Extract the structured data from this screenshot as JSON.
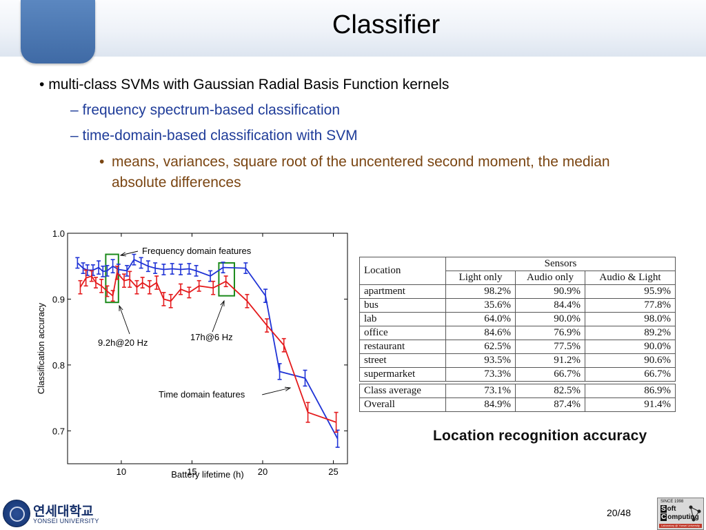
{
  "slide": {
    "title": "Classifier",
    "page": "20/48"
  },
  "bullets": {
    "l1_mark": "•",
    "l1": "multi-class SVMs with Gaussian Radial Basis Function kernels",
    "l2a": "– frequency spectrum-based classification",
    "l2b": "– time-domain-based classification with SVM",
    "l3_mark": "•",
    "l3": "means, variances, square root of the uncentered second moment, the median absolute differences"
  },
  "chart_data": {
    "type": "line",
    "xlabel": "Battery lifetime (h)",
    "ylabel": "Classification accuracy",
    "xlim": [
      6.2,
      26
    ],
    "ylim": [
      0.65,
      1.0
    ],
    "xticks": [
      10,
      15,
      20,
      25
    ],
    "xtick_labels": [
      "10",
      "15",
      "20",
      "25"
    ],
    "yticks": [
      0.7,
      0.8,
      0.9,
      1.0
    ],
    "ytick_labels": [
      "0.7",
      "0.8",
      "0.9",
      "1.0"
    ],
    "series": [
      {
        "name": "Frequency domain features",
        "color": "#1f33d6",
        "x": [
          6.9,
          7.3,
          7.6,
          8.0,
          8.4,
          8.7,
          9.0,
          9.4,
          9.8,
          10.4,
          10.9,
          11.4,
          11.9,
          12.4,
          13.0,
          13.6,
          14.2,
          14.8,
          15.3,
          16.3,
          17.2,
          18.8,
          20.2,
          21.2,
          23.0,
          25.3
        ],
        "y": [
          0.955,
          0.947,
          0.944,
          0.944,
          0.948,
          0.942,
          0.943,
          0.95,
          0.945,
          0.943,
          0.96,
          0.955,
          0.95,
          0.947,
          0.945,
          0.946,
          0.945,
          0.946,
          0.943,
          0.935,
          0.948,
          0.947,
          0.905,
          0.79,
          0.78,
          0.688
        ],
        "err": [
          0.008,
          0.008,
          0.008,
          0.008,
          0.01,
          0.008,
          0.008,
          0.01,
          0.008,
          0.008,
          0.008,
          0.008,
          0.008,
          0.008,
          0.008,
          0.008,
          0.008,
          0.008,
          0.008,
          0.008,
          0.008,
          0.008,
          0.01,
          0.012,
          0.012,
          0.013
        ]
      },
      {
        "name": "Time domain features",
        "color": "#e41a1c",
        "x": [
          7.1,
          7.5,
          7.9,
          8.2,
          8.6,
          9.0,
          9.4,
          9.7,
          10.2,
          10.6,
          11.1,
          11.5,
          12.0,
          12.5,
          13.0,
          13.5,
          14.2,
          14.8,
          15.5,
          16.5,
          17.4,
          18.9,
          20.3,
          21.5,
          23.2,
          25.2
        ],
        "y": [
          0.918,
          0.932,
          0.935,
          0.925,
          0.92,
          0.912,
          0.905,
          0.94,
          0.928,
          0.93,
          0.918,
          0.925,
          0.918,
          0.925,
          0.9,
          0.897,
          0.915,
          0.91,
          0.92,
          0.917,
          0.927,
          0.897,
          0.86,
          0.83,
          0.728,
          0.713
        ],
        "err": [
          0.01,
          0.012,
          0.008,
          0.008,
          0.01,
          0.008,
          0.008,
          0.01,
          0.01,
          0.012,
          0.01,
          0.008,
          0.01,
          0.01,
          0.01,
          0.01,
          0.008,
          0.008,
          0.008,
          0.01,
          0.008,
          0.01,
          0.01,
          0.01,
          0.015,
          0.015
        ]
      }
    ],
    "annotations": {
      "freq_label": "Frequency domain features",
      "time_label": "Time domain features",
      "box1_label": "9.2h@20 Hz",
      "box2_label": "17h@6 Hz"
    },
    "highlight_boxes": [
      {
        "x_range": [
          8.9,
          9.8
        ],
        "y_range": [
          0.895,
          0.968
        ]
      },
      {
        "x_range": [
          16.9,
          18.0
        ],
        "y_range": [
          0.905,
          0.955
        ]
      }
    ],
    "box_color": "#1a8a1a"
  },
  "table": {
    "col_location": "Location",
    "col_sensors": "Sensors",
    "sub_headers": [
      "Light only",
      "Audio only",
      "Audio & Light"
    ],
    "rows": [
      [
        "apartment",
        "98.2%",
        "90.9%",
        "95.9%"
      ],
      [
        "bus",
        "35.6%",
        "84.4%",
        "77.8%"
      ],
      [
        "lab",
        "64.0%",
        "90.0%",
        "98.0%"
      ],
      [
        "office",
        "84.6%",
        "76.9%",
        "89.2%"
      ],
      [
        "restaurant",
        "62.5%",
        "77.5%",
        "90.0%"
      ],
      [
        "street",
        "93.5%",
        "91.2%",
        "90.6%"
      ],
      [
        "supermarket",
        "73.3%",
        "66.7%",
        "66.7%"
      ]
    ],
    "summary_rows": [
      [
        "Class average",
        "73.1%",
        "82.5%",
        "86.9%"
      ],
      [
        "Overall",
        "84.9%",
        "87.4%",
        "91.4%"
      ]
    ],
    "caption": "Location recognition accuracy"
  },
  "footer": {
    "univ_kor": "연세대학교",
    "univ_eng": "YONSEI UNIVERSITY",
    "lab_since": "SINCE 1998",
    "lab_s": "S",
    "lab_oft": "oft",
    "lab_c": "C",
    "lab_omputing": "omputing",
    "lab_sub": "Laboratory @ Yonsei University"
  }
}
